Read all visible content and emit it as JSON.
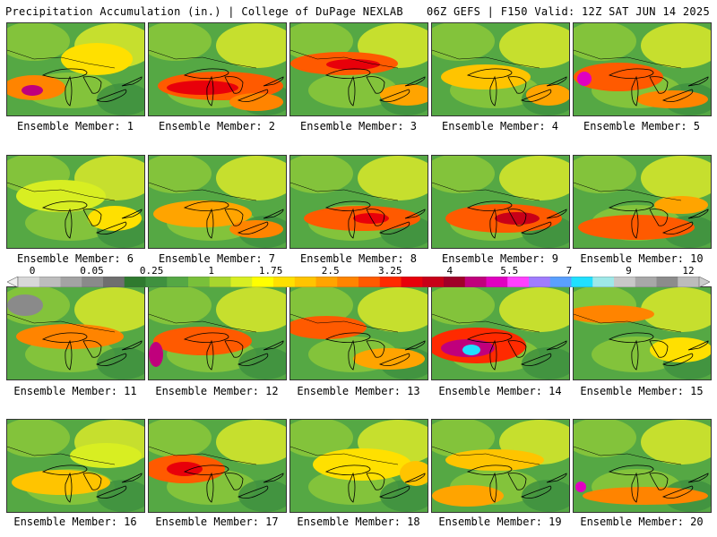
{
  "header": {
    "title": "Precipitation Accumulation (in.) | College of DuPage NEXLAB",
    "run_info": "06Z GEFS | F150 Valid: 12Z SAT JUN 14 2025"
  },
  "colorbar": {
    "tick_labels": [
      "0",
      "0.05",
      "0.25",
      "1",
      "1.75",
      "2.5",
      "3.25",
      "4",
      "5.5",
      "7",
      "9",
      "12"
    ],
    "colors": [
      "#d8d8d8",
      "#bdbdbd",
      "#a3a3a3",
      "#8a8a8a",
      "#6f6f6f",
      "#2f7a2f",
      "#3f913f",
      "#55a844",
      "#79c03a",
      "#a8d62e",
      "#d8ee22",
      "#ffff00",
      "#ffe000",
      "#ffc400",
      "#ffa400",
      "#ff8400",
      "#ff5a00",
      "#ff2a00",
      "#e8000a",
      "#c80018",
      "#a00028",
      "#c0007c",
      "#e000c0",
      "#ff40ff",
      "#a07cff",
      "#5aa0ff",
      "#20e0ff",
      "#9ee8e8",
      "#c8c8c8",
      "#a8a8a8",
      "#8c8c8c",
      "#bcbcbc"
    ]
  },
  "members": [
    {
      "label": "Ensemble Member: 1"
    },
    {
      "label": "Ensemble Member: 2"
    },
    {
      "label": "Ensemble Member: 3"
    },
    {
      "label": "Ensemble Member: 4"
    },
    {
      "label": "Ensemble Member: 5"
    },
    {
      "label": "Ensemble Member: 6"
    },
    {
      "label": "Ensemble Member: 7"
    },
    {
      "label": "Ensemble Member: 8"
    },
    {
      "label": "Ensemble Member: 9"
    },
    {
      "label": "Ensemble Member: 10"
    },
    {
      "label": "Ensemble Member: 11"
    },
    {
      "label": "Ensemble Member: 12"
    },
    {
      "label": "Ensemble Member: 13"
    },
    {
      "label": "Ensemble Member: 14"
    },
    {
      "label": "Ensemble Member: 15"
    },
    {
      "label": "Ensemble Member: 16"
    },
    {
      "label": "Ensemble Member: 17"
    },
    {
      "label": "Ensemble Member: 18"
    },
    {
      "label": "Ensemble Member: 19"
    },
    {
      "label": "Ensemble Member: 20"
    }
  ]
}
